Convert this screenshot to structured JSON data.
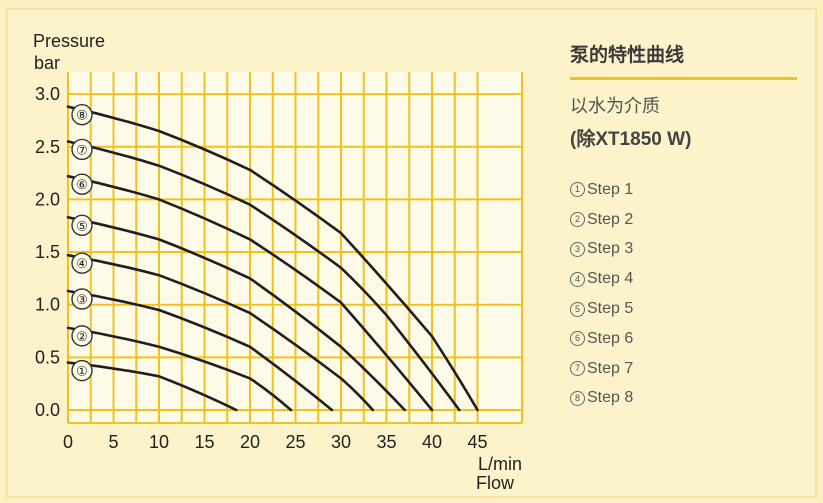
{
  "chart_data": {
    "type": "line",
    "ylabel_line1": "Pressure",
    "ylabel_line2": "bar",
    "xlabel_line1": "L/min",
    "xlabel_line2": "Flow",
    "xlim": [
      0,
      48
    ],
    "ylim": [
      0,
      3.0
    ],
    "x_ticks": [
      "0",
      "5",
      "10",
      "15",
      "20",
      "25",
      "30",
      "35",
      "40",
      "45"
    ],
    "y_ticks": [
      "0.0",
      "0.5",
      "1.0",
      "1.5",
      "2.0",
      "2.5",
      "3.0"
    ],
    "grid": true,
    "series": [
      {
        "label": "①",
        "points": [
          [
            0,
            0.45
          ],
          [
            10,
            0.32
          ],
          [
            18.5,
            0.0
          ]
        ]
      },
      {
        "label": "②",
        "points": [
          [
            0,
            0.78
          ],
          [
            10,
            0.6
          ],
          [
            20,
            0.3
          ],
          [
            24.5,
            0.0
          ]
        ]
      },
      {
        "label": "③",
        "points": [
          [
            0,
            1.13
          ],
          [
            10,
            0.95
          ],
          [
            20,
            0.6
          ],
          [
            29,
            0.0
          ]
        ]
      },
      {
        "label": "④",
        "points": [
          [
            0,
            1.47
          ],
          [
            10,
            1.28
          ],
          [
            20,
            0.92
          ],
          [
            30,
            0.3
          ],
          [
            33.5,
            0.0
          ]
        ]
      },
      {
        "label": "⑤",
        "points": [
          [
            0,
            1.83
          ],
          [
            10,
            1.62
          ],
          [
            20,
            1.25
          ],
          [
            30,
            0.6
          ],
          [
            37,
            0.0
          ]
        ]
      },
      {
        "label": "⑥",
        "points": [
          [
            0,
            2.22
          ],
          [
            10,
            2.0
          ],
          [
            20,
            1.62
          ],
          [
            30,
            1.02
          ],
          [
            40,
            0.0
          ]
        ]
      },
      {
        "label": "⑦",
        "points": [
          [
            0,
            2.55
          ],
          [
            10,
            2.32
          ],
          [
            20,
            1.95
          ],
          [
            30,
            1.35
          ],
          [
            35,
            0.9
          ],
          [
            43,
            0.0
          ]
        ]
      },
      {
        "label": "⑧",
        "points": [
          [
            0,
            2.88
          ],
          [
            10,
            2.65
          ],
          [
            20,
            2.28
          ],
          [
            30,
            1.68
          ],
          [
            40,
            0.7
          ],
          [
            45,
            0.0
          ]
        ]
      }
    ]
  },
  "panel": {
    "title": "泵的特性曲线",
    "subtitle1": "以水为介质",
    "subtitle2": "(除XT1850 W)",
    "legend": [
      {
        "num": "1",
        "text": "Step 1"
      },
      {
        "num": "2",
        "text": "Step 2"
      },
      {
        "num": "3",
        "text": "Step 3"
      },
      {
        "num": "4",
        "text": "Step 4"
      },
      {
        "num": "5",
        "text": "Step 5"
      },
      {
        "num": "6",
        "text": "Step 6"
      },
      {
        "num": "7",
        "text": "Step 7"
      },
      {
        "num": "8",
        "text": "Step 8"
      }
    ]
  },
  "colors": {
    "grid": "#f2c21c",
    "curve": "#1f1f1f",
    "plot_bg": "#fefae8"
  }
}
